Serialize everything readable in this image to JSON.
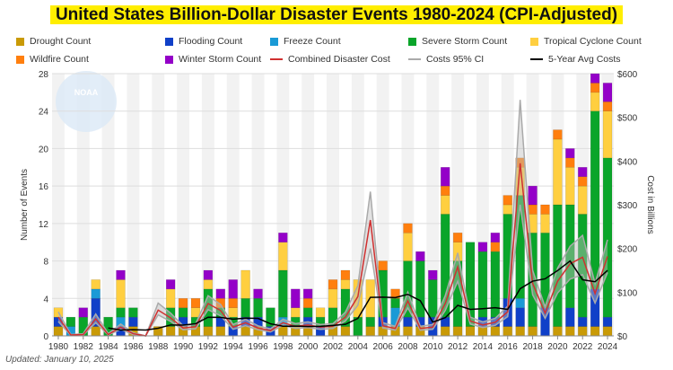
{
  "chart_data": {
    "type": "bar",
    "title": "United States Billion-Dollar Disaster Events 1980-2024 (CPI-Adjusted)",
    "ylabel": "Number of Events",
    "y2label": "Cost in Billions",
    "ylim": [
      0,
      28
    ],
    "y2lim": [
      0,
      600
    ],
    "yticks": [
      "0",
      "4",
      "8",
      "12",
      "16",
      "20",
      "24",
      "28"
    ],
    "y2ticks": [
      "$0",
      "$100",
      "$200",
      "$300",
      "$400",
      "$500",
      "$600"
    ],
    "legend_position": "top",
    "years": [
      1980,
      1981,
      1982,
      1983,
      1984,
      1985,
      1986,
      1987,
      1988,
      1989,
      1990,
      1991,
      1992,
      1993,
      1994,
      1995,
      1996,
      1997,
      1998,
      1999,
      2000,
      2001,
      2002,
      2003,
      2004,
      2005,
      2006,
      2007,
      2008,
      2009,
      2010,
      2011,
      2012,
      2013,
      2014,
      2015,
      2016,
      2017,
      2018,
      2019,
      2020,
      2021,
      2022,
      2023,
      2024
    ],
    "series": [
      {
        "name": "Drought Count",
        "color": "#c99a06",
        "values": [
          1,
          0,
          0,
          1,
          0,
          0,
          1,
          0,
          1,
          1,
          1,
          1,
          1,
          1,
          0,
          1,
          1,
          0,
          1,
          1,
          1,
          0,
          1,
          1,
          0,
          1,
          1,
          1,
          1,
          1,
          0,
          1,
          1,
          1,
          1,
          1,
          1,
          1,
          1,
          0,
          1,
          1,
          1,
          1,
          1
        ]
      },
      {
        "name": "Flooding Count",
        "color": "#1040c8",
        "values": [
          1,
          0,
          0,
          3,
          0,
          1,
          1,
          0,
          0,
          0,
          1,
          0,
          0,
          1,
          1,
          1,
          1,
          1,
          0,
          0,
          1,
          1,
          0,
          0,
          0,
          0,
          1,
          0,
          1,
          1,
          2,
          1,
          0,
          0,
          1,
          1,
          3,
          2,
          0,
          3,
          0,
          2,
          1,
          4,
          1
        ]
      },
      {
        "name": "Freeze Count",
        "color": "#1a9ad6",
        "values": [
          0,
          1,
          0,
          1,
          0,
          1,
          0,
          0,
          0,
          0,
          0,
          0,
          0,
          0,
          0,
          0,
          0,
          0,
          1,
          0,
          0,
          0,
          0,
          0,
          0,
          0,
          0,
          2,
          0,
          0,
          0,
          0,
          0,
          0,
          0,
          0,
          0,
          1,
          0,
          0,
          0,
          0,
          0,
          0,
          0
        ]
      },
      {
        "name": "Severe Storm Count",
        "color": "#0aa52a",
        "values": [
          0,
          1,
          2,
          0,
          2,
          1,
          1,
          0,
          0,
          2,
          1,
          1,
          4,
          1,
          1,
          2,
          2,
          2,
          5,
          1,
          1,
          1,
          2,
          4,
          2,
          1,
          5,
          1,
          6,
          6,
          4,
          11,
          7,
          9,
          7,
          7,
          9,
          11,
          10,
          8,
          13,
          11,
          11,
          19,
          17
        ]
      },
      {
        "name": "Tropical Cyclone Count",
        "color": "#ffcf40",
        "values": [
          1,
          0,
          0,
          1,
          0,
          3,
          0,
          0,
          0,
          2,
          0,
          1,
          1,
          0,
          1,
          3,
          0,
          0,
          3,
          1,
          0,
          1,
          2,
          1,
          4,
          4,
          0,
          0,
          3,
          0,
          0,
          2,
          2,
          0,
          0,
          0,
          1,
          3,
          2,
          2,
          7,
          4,
          3,
          2,
          5
        ]
      },
      {
        "name": "Wildfire Count",
        "color": "#ff7f0e",
        "values": [
          0,
          0,
          0,
          0,
          0,
          0,
          0,
          0,
          0,
          0,
          1,
          1,
          0,
          1,
          1,
          0,
          0,
          0,
          0,
          0,
          1,
          0,
          1,
          1,
          0,
          0,
          1,
          1,
          1,
          0,
          0,
          1,
          1,
          0,
          0,
          1,
          1,
          1,
          1,
          1,
          1,
          1,
          1,
          1,
          1
        ]
      },
      {
        "name": "Winter Storm Count",
        "color": "#9400c8",
        "values": [
          0,
          0,
          1,
          0,
          0,
          1,
          0,
          0,
          0,
          1,
          0,
          0,
          1,
          1,
          2,
          0,
          1,
          0,
          1,
          2,
          1,
          0,
          0,
          0,
          0,
          0,
          0,
          0,
          0,
          1,
          1,
          2,
          0,
          0,
          1,
          1,
          0,
          0,
          2,
          0,
          0,
          1,
          1,
          1,
          2
        ]
      }
    ],
    "lines": [
      {
        "name": "Combined Disaster Cost",
        "color": "#d03030",
        "values": [
          43,
          2,
          3,
          39,
          3,
          20,
          5,
          0,
          59,
          41,
          18,
          21,
          74,
          58,
          20,
          30,
          18,
          12,
          30,
          22,
          25,
          20,
          22,
          43,
          90,
          265,
          23,
          17,
          80,
          17,
          20,
          74,
          158,
          34,
          25,
          31,
          55,
          395,
          120,
          52,
          125,
          165,
          180,
          97,
          182
        ]
      },
      {
        "name": "Costs 95% CI",
        "color": "#aaaaaa",
        "low": [
          33,
          1,
          2,
          30,
          2,
          15,
          3,
          0,
          48,
          33,
          14,
          16,
          60,
          46,
          15,
          23,
          14,
          9,
          24,
          17,
          19,
          15,
          17,
          34,
          70,
          200,
          18,
          13,
          64,
          13,
          15,
          58,
          125,
          27,
          19,
          24,
          44,
          300,
          94,
          40,
          98,
          130,
          140,
          75,
          145
        ],
        "high": [
          55,
          3,
          5,
          50,
          5,
          27,
          7,
          0,
          75,
          52,
          23,
          27,
          92,
          72,
          26,
          38,
          23,
          16,
          38,
          28,
          32,
          26,
          28,
          54,
          115,
          330,
          30,
          22,
          100,
          22,
          26,
          92,
          190,
          43,
          32,
          40,
          68,
          540,
          150,
          66,
          155,
          205,
          230,
          120,
          220
        ]
      },
      {
        "name": "5-Year Avg Costs",
        "color": "#000000",
        "window": 5
      }
    ],
    "xticks": [
      "1980",
      "1982",
      "1984",
      "1986",
      "1988",
      "1990",
      "1992",
      "1994",
      "1996",
      "1998",
      "2000",
      "2002",
      "2004",
      "2006",
      "2008",
      "2010",
      "2012",
      "2014",
      "2016",
      "2018",
      "2020",
      "2022",
      "2024"
    ]
  },
  "footer": {
    "updated": "Updated: January 10, 2025"
  },
  "logo_text": "NOAA"
}
